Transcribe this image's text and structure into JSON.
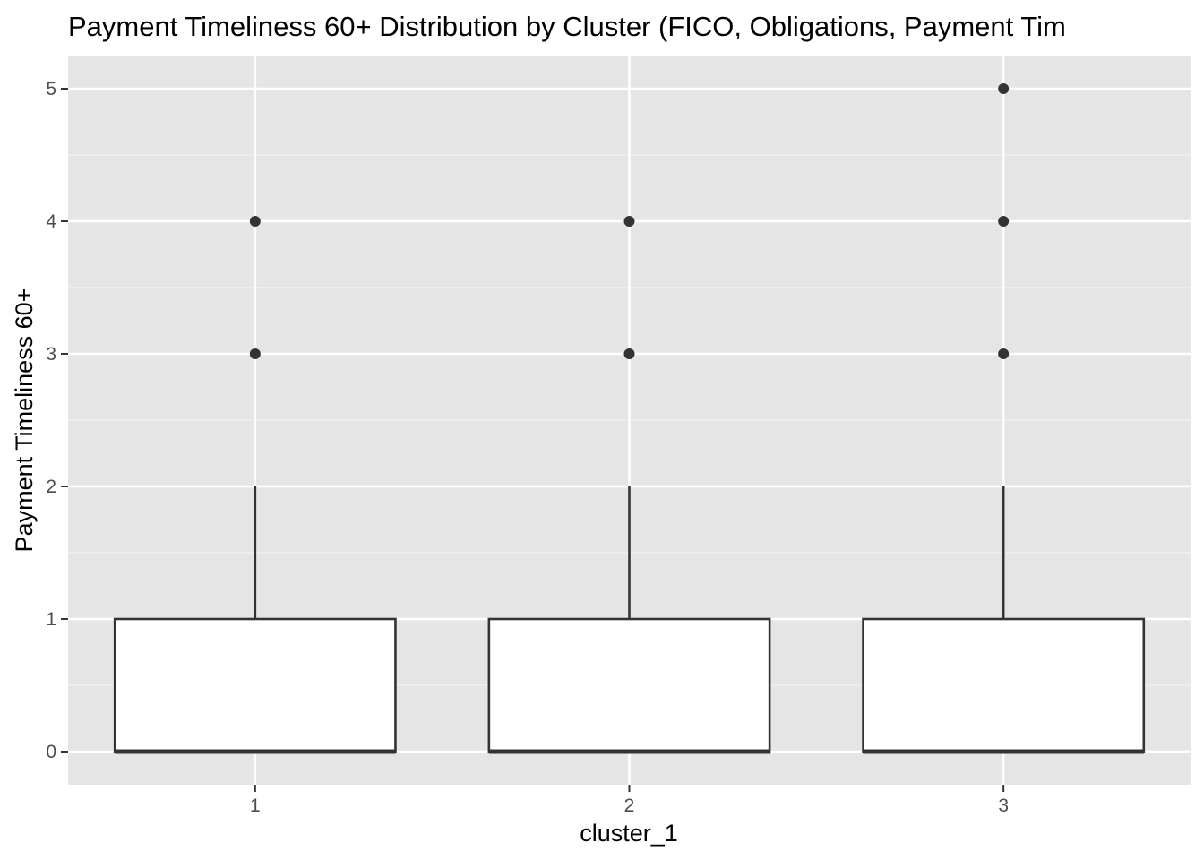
{
  "chart_data": {
    "type": "boxplot",
    "title": "Payment Timeliness 60+ Distribution by Cluster (FICO, Obligations, Payment Tim",
    "xlabel": "cluster_1",
    "ylabel": "Payment Timeliness 60+",
    "categories": [
      "1",
      "2",
      "3"
    ],
    "y_ticks": [
      0,
      1,
      2,
      3,
      4,
      5
    ],
    "ylim": [
      -0.25,
      5.25
    ],
    "grid": true,
    "legend": "none",
    "boxes": [
      {
        "category": "1",
        "min": 0,
        "q1": 0,
        "median": 0,
        "q3": 1,
        "max": 2,
        "outliers": [
          3,
          4
        ]
      },
      {
        "category": "2",
        "min": 0,
        "q1": 0,
        "median": 0,
        "q3": 1,
        "max": 2,
        "outliers": [
          3,
          4
        ]
      },
      {
        "category": "3",
        "min": 0,
        "q1": 0,
        "median": 0,
        "q3": 1,
        "max": 2,
        "outliers": [
          3,
          4,
          5
        ]
      }
    ],
    "colors": {
      "panel_background": "#e5e5e5",
      "grid_major": "#ffffff",
      "grid_minor": "#f2f2f2",
      "box_fill": "#ffffff",
      "box_line": "#333333",
      "outlier": "#333333",
      "tick_text": "#4d4d4d",
      "tick_mark": "#333333"
    }
  }
}
